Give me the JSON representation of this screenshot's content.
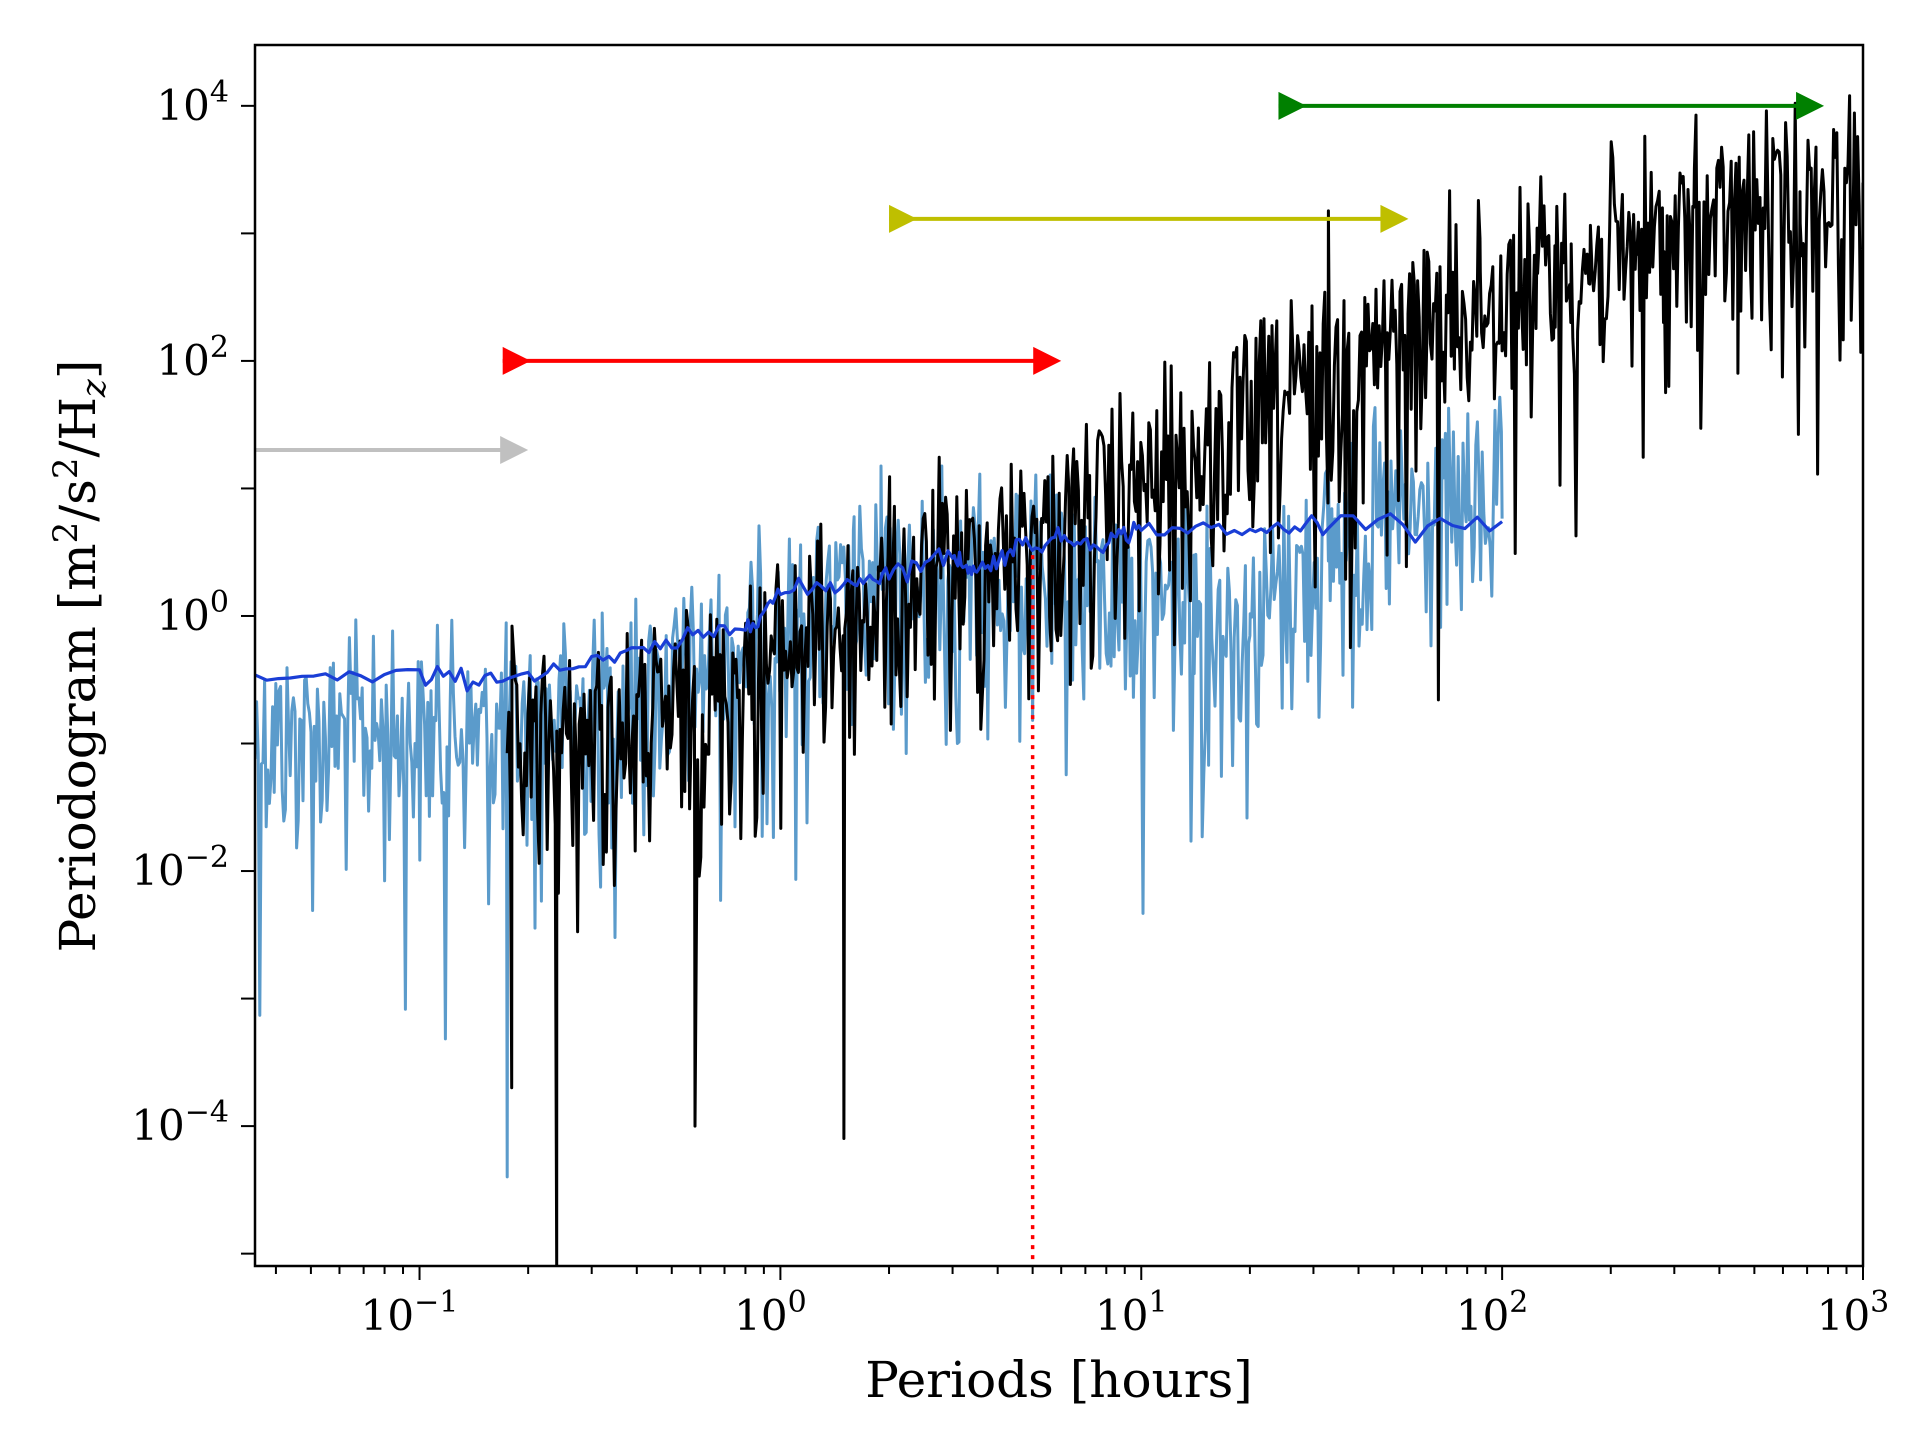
{
  "chart_data": {
    "type": "line",
    "xlabel": "Periods [hours]",
    "ylabel": "Periodogram [m²/s²/H_z]",
    "ylabel_parts": {
      "prefix": "Periodogram [m",
      "sq1": "2",
      "mid": "/s",
      "sq2": "2",
      "mid2": "/H",
      "sub": "z",
      "suffix": "]"
    },
    "x_scale": "log",
    "y_scale": "log",
    "xlim": [
      0.035,
      1000
    ],
    "ylim": [
      8e-06,
      30000
    ],
    "grid": false,
    "x_ticks": [
      {
        "value": 0.1,
        "base": "10",
        "exp": "−1"
      },
      {
        "value": 1,
        "base": "10",
        "exp": "0"
      },
      {
        "value": 10,
        "base": "10",
        "exp": "1"
      },
      {
        "value": 100,
        "base": "10",
        "exp": "2"
      },
      {
        "value": 1000,
        "base": "10",
        "exp": "3"
      }
    ],
    "y_ticks": [
      {
        "value": 0.0001,
        "base": "10",
        "exp": "−4"
      },
      {
        "value": 0.01,
        "base": "10",
        "exp": "−2"
      },
      {
        "value": 1,
        "base": "10",
        "exp": "0"
      },
      {
        "value": 100,
        "base": "10",
        "exp": "2"
      },
      {
        "value": 10000,
        "base": "10",
        "exp": "4"
      }
    ],
    "series": [
      {
        "color": "#000000",
        "style": "noisy",
        "x_range": [
          0.175,
          1000
        ],
        "trend": [
          [
            0.175,
            0.05
          ],
          [
            0.5,
            0.1
          ],
          [
            1,
            0.35
          ],
          [
            3,
            1.5
          ],
          [
            10,
            6
          ],
          [
            30,
            40
          ],
          [
            100,
            250
          ],
          [
            1000,
            1500
          ]
        ],
        "highlights": [
          [
            0.18,
            0.0002
          ],
          [
            0.24,
            8e-06
          ],
          [
            0.58,
            0.0001
          ],
          [
            1.5,
            8e-05
          ],
          [
            33,
            1500
          ],
          [
            48,
            3
          ],
          [
            62,
            200
          ],
          [
            87,
            500
          ],
          [
            100,
            120
          ],
          [
            110,
            180
          ],
          [
            125,
            1100
          ],
          [
            140,
            800
          ],
          [
            155,
            200
          ],
          [
            175,
            400
          ],
          [
            235,
            800
          ],
          [
            280,
            200
          ],
          [
            340,
            1600
          ],
          [
            450,
            80
          ],
          [
            670,
            1200
          ],
          [
            1000,
            2500
          ]
        ]
      },
      {
        "color": "#5b9bcb",
        "style": "noisy",
        "x_range": [
          0.035,
          100
        ],
        "trend": [
          [
            0.035,
            0.08
          ],
          [
            0.17,
            0.08
          ],
          [
            0.5,
            0.2
          ],
          [
            1,
            0.5
          ],
          [
            3,
            1.2
          ],
          [
            10,
            1.0
          ],
          [
            20,
            0.6
          ],
          [
            33,
            2.5
          ],
          [
            100,
            5.5
          ]
        ],
        "highlights": [
          [
            0.175,
            4e-05
          ],
          [
            1.6,
            6
          ],
          [
            1.9,
            15
          ],
          [
            2.8,
            15
          ],
          [
            4.5,
            9
          ],
          [
            7,
            5
          ],
          [
            10,
            0.9
          ],
          [
            14,
            3
          ],
          [
            20,
            0.7
          ],
          [
            33,
            2.7
          ],
          [
            100,
            5.8
          ]
        ]
      },
      {
        "color": "#1a3ed6",
        "style": "smooth",
        "points": [
          [
            0.035,
            0.32
          ],
          [
            0.1,
            0.33
          ],
          [
            0.17,
            0.33
          ],
          [
            0.3,
            0.42
          ],
          [
            0.5,
            0.6
          ],
          [
            0.8,
            0.85
          ],
          [
            1.0,
            1.5
          ],
          [
            1.5,
            1.8
          ],
          [
            2,
            2.2
          ],
          [
            3,
            3.0
          ],
          [
            3.5,
            2.2
          ],
          [
            4.5,
            3.5
          ],
          [
            6,
            4.0
          ],
          [
            8,
            3.8
          ],
          [
            10,
            5.0
          ],
          [
            20,
            4.5
          ],
          [
            33,
            5.5
          ],
          [
            100,
            5.5
          ]
        ]
      }
    ],
    "vline": {
      "x": 5.0,
      "y_top": 3.0,
      "color": "#ff0000",
      "style": "dotted"
    },
    "arrows": [
      {
        "color": "#c0c0c0",
        "x_start": 0.035,
        "x_end": 0.2,
        "y": 20,
        "start_marker": false
      },
      {
        "color": "#ff0000",
        "x_start": 0.17,
        "x_end": 6.0,
        "y": 100,
        "start_marker": true
      },
      {
        "color": "#bfbf00",
        "x_start": 2.0,
        "x_end": 55,
        "y": 1300,
        "start_marker": true
      },
      {
        "color": "#008000",
        "x_start": 24,
        "x_end": 780,
        "y": 10000,
        "start_marker": true
      }
    ]
  }
}
